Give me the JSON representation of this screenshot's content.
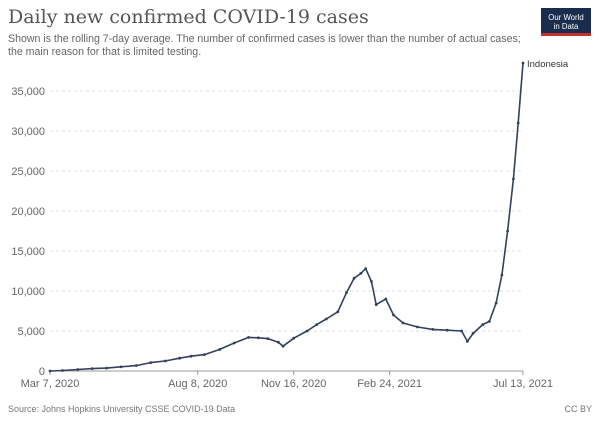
{
  "header": {
    "title": "Daily new confirmed COVID-19 cases",
    "subtitle": "Shown is the rolling 7-day average. The number of confirmed cases is lower than the number of actual cases; the main reason for that is limited testing."
  },
  "logo": {
    "line1": "Our World",
    "line2": "in Data"
  },
  "footer": {
    "source": "Source: Johns Hopkins University CSSE COVID-19 Data",
    "license": "CC BY"
  },
  "colors": {
    "series": "#33415c",
    "grid": "#dddddd",
    "logo_bg": "#1a2d4e",
    "logo_accent": "#c5322b"
  },
  "chart_data": {
    "type": "line",
    "title": "Daily new confirmed COVID-19 cases",
    "ylim": [
      0,
      38000
    ],
    "yticks": [
      {
        "value": 0,
        "label": "0"
      },
      {
        "value": 5000,
        "label": "5,000"
      },
      {
        "value": 10000,
        "label": "10,000"
      },
      {
        "value": 15000,
        "label": "15,000"
      },
      {
        "value": 20000,
        "label": "20,000"
      },
      {
        "value": 25000,
        "label": "25,000"
      },
      {
        "value": 30000,
        "label": "30,000"
      },
      {
        "value": 35000,
        "label": "35,000"
      }
    ],
    "xlim": [
      "2020-03-07",
      "2021-07-13"
    ],
    "xticks": [
      {
        "date": "2020-03-07",
        "label": "Mar 7, 2020"
      },
      {
        "date": "2020-08-08",
        "label": "Aug 8, 2020"
      },
      {
        "date": "2020-11-16",
        "label": "Nov 16, 2020"
      },
      {
        "date": "2021-02-24",
        "label": "Feb 24, 2021"
      },
      {
        "date": "2021-07-13",
        "label": "Jul 13, 2021"
      }
    ],
    "grid": "horizontal dashed",
    "series": [
      {
        "name": "Indonesia",
        "points": [
          [
            "2020-03-07",
            0
          ],
          [
            "2020-03-20",
            60
          ],
          [
            "2020-04-05",
            190
          ],
          [
            "2020-04-20",
            300
          ],
          [
            "2020-05-05",
            360
          ],
          [
            "2020-05-20",
            520
          ],
          [
            "2020-06-05",
            680
          ],
          [
            "2020-06-20",
            1050
          ],
          [
            "2020-07-05",
            1250
          ],
          [
            "2020-07-20",
            1600
          ],
          [
            "2020-08-01",
            1850
          ],
          [
            "2020-08-15",
            2050
          ],
          [
            "2020-08-31",
            2700
          ],
          [
            "2020-09-15",
            3500
          ],
          [
            "2020-09-30",
            4200
          ],
          [
            "2020-10-10",
            4150
          ],
          [
            "2020-10-20",
            4050
          ],
          [
            "2020-10-31",
            3600
          ],
          [
            "2020-11-05",
            3100
          ],
          [
            "2020-11-16",
            4100
          ],
          [
            "2020-11-30",
            5000
          ],
          [
            "2020-12-10",
            5800
          ],
          [
            "2020-12-20",
            6500
          ],
          [
            "2021-01-01",
            7400
          ],
          [
            "2021-01-10",
            9800
          ],
          [
            "2021-01-18",
            11600
          ],
          [
            "2021-01-25",
            12200
          ],
          [
            "2021-01-30",
            12800
          ],
          [
            "2021-02-05",
            11200
          ],
          [
            "2021-02-10",
            8300
          ],
          [
            "2021-02-20",
            9000
          ],
          [
            "2021-02-28",
            7000
          ],
          [
            "2021-03-10",
            6000
          ],
          [
            "2021-03-25",
            5500
          ],
          [
            "2021-04-10",
            5200
          ],
          [
            "2021-04-25",
            5100
          ],
          [
            "2021-05-10",
            5000
          ],
          [
            "2021-05-16",
            3700
          ],
          [
            "2021-05-22",
            4700
          ],
          [
            "2021-06-01",
            5800
          ],
          [
            "2021-06-08",
            6200
          ],
          [
            "2021-06-15",
            8500
          ],
          [
            "2021-06-21",
            12000
          ],
          [
            "2021-06-27",
            17500
          ],
          [
            "2021-07-03",
            24000
          ],
          [
            "2021-07-08",
            31000
          ],
          [
            "2021-07-13",
            38500
          ]
        ]
      }
    ]
  }
}
